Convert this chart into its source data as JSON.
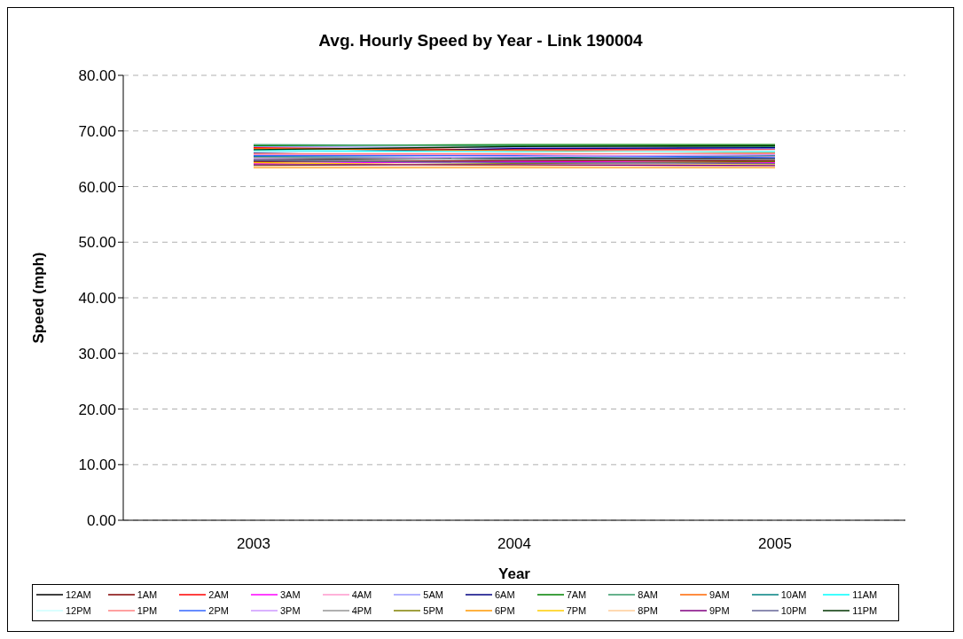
{
  "chart_data": {
    "type": "line",
    "title": "Avg. Hourly Speed by Year - Link 190004",
    "xlabel": "Year",
    "ylabel": "Speed (mph)",
    "categories": [
      "2003",
      "2004",
      "2005"
    ],
    "ylim": [
      0,
      80
    ],
    "yticks": [
      {
        "value": 0,
        "label": "0.00"
      },
      {
        "value": 10,
        "label": "10.00"
      },
      {
        "value": 20,
        "label": "20.00"
      },
      {
        "value": 30,
        "label": "30.00"
      },
      {
        "value": 40,
        "label": "40.00"
      },
      {
        "value": 50,
        "label": "50.00"
      },
      {
        "value": 60,
        "label": "60.00"
      },
      {
        "value": 70,
        "label": "70.00"
      },
      {
        "value": 80,
        "label": "80.00"
      }
    ],
    "grid": "y",
    "legend": "bottom",
    "marker": "none",
    "line_style": "solid",
    "series": [
      {
        "name": "12AM",
        "color": "#000000",
        "values": [
          64.84,
          65.02,
          65.02
        ]
      },
      {
        "name": "1AM",
        "color": "#800000",
        "values": [
          64.48,
          64.66,
          64.66
        ]
      },
      {
        "name": "2AM",
        "color": "#ff0000",
        "values": [
          67.0,
          66.64,
          66.64
        ]
      },
      {
        "name": "3AM",
        "color": "#ff00ff",
        "values": [
          64.12,
          64.48,
          64.3
        ]
      },
      {
        "name": "4AM",
        "color": "#ff99cc",
        "values": [
          65.74,
          65.74,
          65.38
        ]
      },
      {
        "name": "5AM",
        "color": "#9999ff",
        "values": [
          67.18,
          67.0,
          66.82
        ]
      },
      {
        "name": "6AM",
        "color": "#000080",
        "values": [
          66.1,
          66.82,
          67.0
        ]
      },
      {
        "name": "7AM",
        "color": "#008000",
        "values": [
          67.36,
          67.54,
          67.54
        ]
      },
      {
        "name": "8AM",
        "color": "#339966",
        "values": [
          67.54,
          67.36,
          67.18
        ]
      },
      {
        "name": "9AM",
        "color": "#ff6600",
        "values": [
          66.82,
          66.46,
          66.1
        ]
      },
      {
        "name": "10AM",
        "color": "#008080",
        "values": [
          65.38,
          65.2,
          65.56
        ]
      },
      {
        "name": "11AM",
        "color": "#00ffff",
        "values": [
          66.46,
          66.28,
          66.28
        ]
      },
      {
        "name": "12PM",
        "color": "#ccffff",
        "values": [
          66.28,
          66.1,
          66.46
        ]
      },
      {
        "name": "1PM",
        "color": "#ff8080",
        "values": [
          65.92,
          65.92,
          65.92
        ]
      },
      {
        "name": "2PM",
        "color": "#3366ff",
        "values": [
          65.56,
          65.56,
          65.2
        ]
      },
      {
        "name": "3PM",
        "color": "#cc99ff",
        "values": [
          65.02,
          65.38,
          65.74
        ]
      },
      {
        "name": "4PM",
        "color": "#969696",
        "values": [
          65.2,
          64.84,
          64.84
        ]
      },
      {
        "name": "5PM",
        "color": "#808000",
        "values": [
          63.76,
          64.12,
          64.48
        ]
      },
      {
        "name": "6PM",
        "color": "#ff9900",
        "values": [
          63.4,
          63.4,
          63.4
        ]
      },
      {
        "name": "7PM",
        "color": "#ffcc00",
        "values": [
          64.3,
          63.76,
          63.94
        ]
      },
      {
        "name": "8PM",
        "color": "#ffcc99",
        "values": [
          63.58,
          63.58,
          63.58
        ]
      },
      {
        "name": "9PM",
        "color": "#800080",
        "values": [
          63.94,
          63.94,
          63.76
        ]
      },
      {
        "name": "10PM",
        "color": "#666699",
        "values": [
          64.66,
          64.3,
          64.12
        ]
      },
      {
        "name": "11PM",
        "color": "#003300",
        "values": [
          66.64,
          67.18,
          67.36
        ]
      }
    ]
  }
}
